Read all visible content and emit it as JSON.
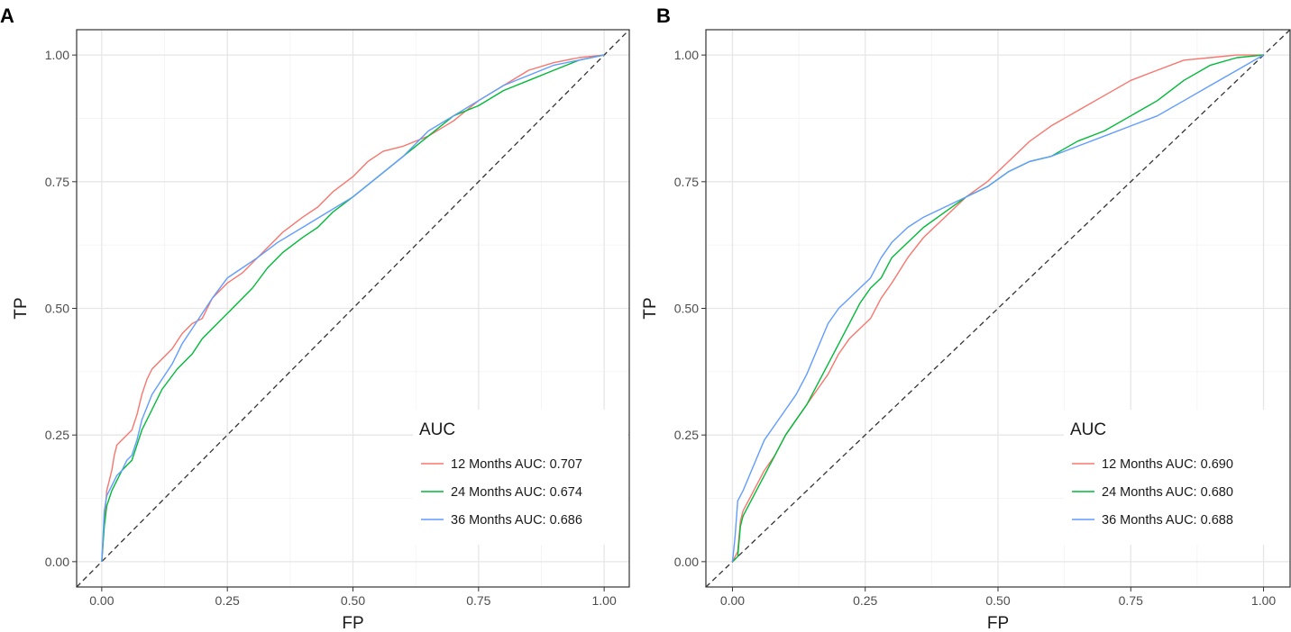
{
  "chart_data": [
    {
      "type": "line",
      "panel": "A",
      "xlabel": "FP",
      "ylabel": "TP",
      "xlim": [
        -0.05,
        1.05
      ],
      "ylim": [
        -0.05,
        1.05
      ],
      "xticks": [
        "0.00",
        "0.25",
        "0.50",
        "0.75",
        "1.00"
      ],
      "yticks": [
        "0.00",
        "0.25",
        "0.50",
        "0.75",
        "1.00"
      ],
      "grid": true,
      "reference_line": "diagonal dashed",
      "legend": {
        "title": "AUC",
        "position": "bottom-right"
      },
      "series": [
        {
          "name": "12 Months AUC: 0.707",
          "color": "#F8766D",
          "x": [
            0,
            0.005,
            0.01,
            0.02,
            0.025,
            0.03,
            0.04,
            0.05,
            0.06,
            0.07,
            0.08,
            0.09,
            0.1,
            0.12,
            0.14,
            0.16,
            0.18,
            0.2,
            0.22,
            0.25,
            0.28,
            0.3,
            0.33,
            0.36,
            0.4,
            0.43,
            0.46,
            0.5,
            0.53,
            0.56,
            0.6,
            0.65,
            0.7,
            0.75,
            0.8,
            0.85,
            0.9,
            0.95,
            1.0
          ],
          "y": [
            0,
            0.08,
            0.14,
            0.18,
            0.21,
            0.23,
            0.24,
            0.25,
            0.26,
            0.29,
            0.33,
            0.36,
            0.38,
            0.4,
            0.42,
            0.45,
            0.47,
            0.48,
            0.52,
            0.55,
            0.57,
            0.59,
            0.62,
            0.65,
            0.68,
            0.7,
            0.73,
            0.76,
            0.79,
            0.81,
            0.82,
            0.84,
            0.87,
            0.91,
            0.94,
            0.97,
            0.985,
            0.995,
            1.0
          ]
        },
        {
          "name": "24 Months AUC: 0.674",
          "color": "#00BA38",
          "x": [
            0,
            0.005,
            0.01,
            0.02,
            0.03,
            0.04,
            0.05,
            0.06,
            0.07,
            0.08,
            0.1,
            0.12,
            0.15,
            0.18,
            0.2,
            0.23,
            0.26,
            0.3,
            0.33,
            0.36,
            0.4,
            0.43,
            0.46,
            0.5,
            0.55,
            0.6,
            0.65,
            0.7,
            0.75,
            0.8,
            0.85,
            0.9,
            0.95,
            1.0
          ],
          "y": [
            0,
            0.07,
            0.11,
            0.14,
            0.16,
            0.18,
            0.19,
            0.2,
            0.23,
            0.26,
            0.3,
            0.34,
            0.38,
            0.41,
            0.44,
            0.47,
            0.5,
            0.54,
            0.58,
            0.61,
            0.64,
            0.66,
            0.69,
            0.72,
            0.76,
            0.8,
            0.84,
            0.88,
            0.9,
            0.93,
            0.95,
            0.97,
            0.99,
            1.0
          ]
        },
        {
          "name": "36 Months AUC: 0.686",
          "color": "#619CFF",
          "x": [
            0,
            0.005,
            0.01,
            0.02,
            0.03,
            0.04,
            0.05,
            0.06,
            0.07,
            0.08,
            0.1,
            0.12,
            0.14,
            0.16,
            0.18,
            0.2,
            0.22,
            0.25,
            0.28,
            0.31,
            0.35,
            0.4,
            0.45,
            0.5,
            0.55,
            0.6,
            0.65,
            0.7,
            0.75,
            0.8,
            0.85,
            0.9,
            0.95,
            1.0
          ],
          "y": [
            0,
            0.1,
            0.13,
            0.15,
            0.17,
            0.18,
            0.2,
            0.21,
            0.24,
            0.28,
            0.33,
            0.36,
            0.39,
            0.43,
            0.46,
            0.49,
            0.52,
            0.56,
            0.58,
            0.6,
            0.63,
            0.66,
            0.69,
            0.72,
            0.76,
            0.8,
            0.85,
            0.88,
            0.91,
            0.94,
            0.96,
            0.98,
            0.99,
            1.0
          ]
        }
      ]
    },
    {
      "type": "line",
      "panel": "B",
      "xlabel": "FP",
      "ylabel": "TP",
      "xlim": [
        -0.05,
        1.05
      ],
      "ylim": [
        -0.05,
        1.05
      ],
      "xticks": [
        "0.00",
        "0.25",
        "0.50",
        "0.75",
        "1.00"
      ],
      "yticks": [
        "0.00",
        "0.25",
        "0.50",
        "0.75",
        "1.00"
      ],
      "grid": true,
      "reference_line": "diagonal dashed",
      "legend": {
        "title": "AUC",
        "position": "bottom-right"
      },
      "series": [
        {
          "name": "12 Months AUC: 0.690",
          "color": "#F8766D",
          "x": [
            0,
            0.01,
            0.015,
            0.02,
            0.04,
            0.06,
            0.08,
            0.1,
            0.12,
            0.14,
            0.16,
            0.18,
            0.2,
            0.22,
            0.24,
            0.26,
            0.28,
            0.3,
            0.33,
            0.36,
            0.4,
            0.44,
            0.48,
            0.52,
            0.56,
            0.6,
            0.65,
            0.7,
            0.75,
            0.8,
            0.85,
            0.9,
            0.95,
            1.0
          ],
          "y": [
            0,
            0.02,
            0.08,
            0.1,
            0.14,
            0.18,
            0.21,
            0.25,
            0.28,
            0.31,
            0.34,
            0.37,
            0.41,
            0.44,
            0.46,
            0.48,
            0.52,
            0.55,
            0.6,
            0.64,
            0.68,
            0.72,
            0.75,
            0.79,
            0.83,
            0.86,
            0.89,
            0.92,
            0.95,
            0.97,
            0.99,
            0.995,
            1.0,
            1.0
          ]
        },
        {
          "name": "24 Months AUC: 0.680",
          "color": "#00BA38",
          "x": [
            0,
            0.01,
            0.015,
            0.02,
            0.04,
            0.06,
            0.08,
            0.1,
            0.12,
            0.14,
            0.16,
            0.18,
            0.2,
            0.22,
            0.24,
            0.26,
            0.28,
            0.3,
            0.33,
            0.36,
            0.4,
            0.44,
            0.48,
            0.52,
            0.56,
            0.6,
            0.65,
            0.7,
            0.75,
            0.8,
            0.85,
            0.9,
            0.95,
            1.0
          ],
          "y": [
            0,
            0.01,
            0.07,
            0.09,
            0.13,
            0.17,
            0.21,
            0.25,
            0.28,
            0.31,
            0.35,
            0.39,
            0.43,
            0.47,
            0.51,
            0.54,
            0.56,
            0.6,
            0.63,
            0.66,
            0.69,
            0.72,
            0.74,
            0.77,
            0.79,
            0.8,
            0.83,
            0.85,
            0.88,
            0.91,
            0.95,
            0.98,
            0.995,
            1.0
          ]
        },
        {
          "name": "36 Months AUC: 0.688",
          "color": "#619CFF",
          "x": [
            0,
            0.005,
            0.01,
            0.02,
            0.04,
            0.06,
            0.08,
            0.1,
            0.12,
            0.14,
            0.16,
            0.18,
            0.2,
            0.22,
            0.24,
            0.26,
            0.28,
            0.3,
            0.33,
            0.36,
            0.4,
            0.44,
            0.48,
            0.52,
            0.56,
            0.6,
            0.65,
            0.7,
            0.75,
            0.8,
            0.85,
            0.9,
            0.95,
            1.0
          ],
          "y": [
            0,
            0.05,
            0.12,
            0.14,
            0.19,
            0.24,
            0.27,
            0.3,
            0.33,
            0.37,
            0.42,
            0.47,
            0.5,
            0.52,
            0.54,
            0.56,
            0.6,
            0.63,
            0.66,
            0.68,
            0.7,
            0.72,
            0.74,
            0.77,
            0.79,
            0.8,
            0.82,
            0.84,
            0.86,
            0.88,
            0.91,
            0.94,
            0.97,
            1.0
          ]
        }
      ]
    }
  ]
}
